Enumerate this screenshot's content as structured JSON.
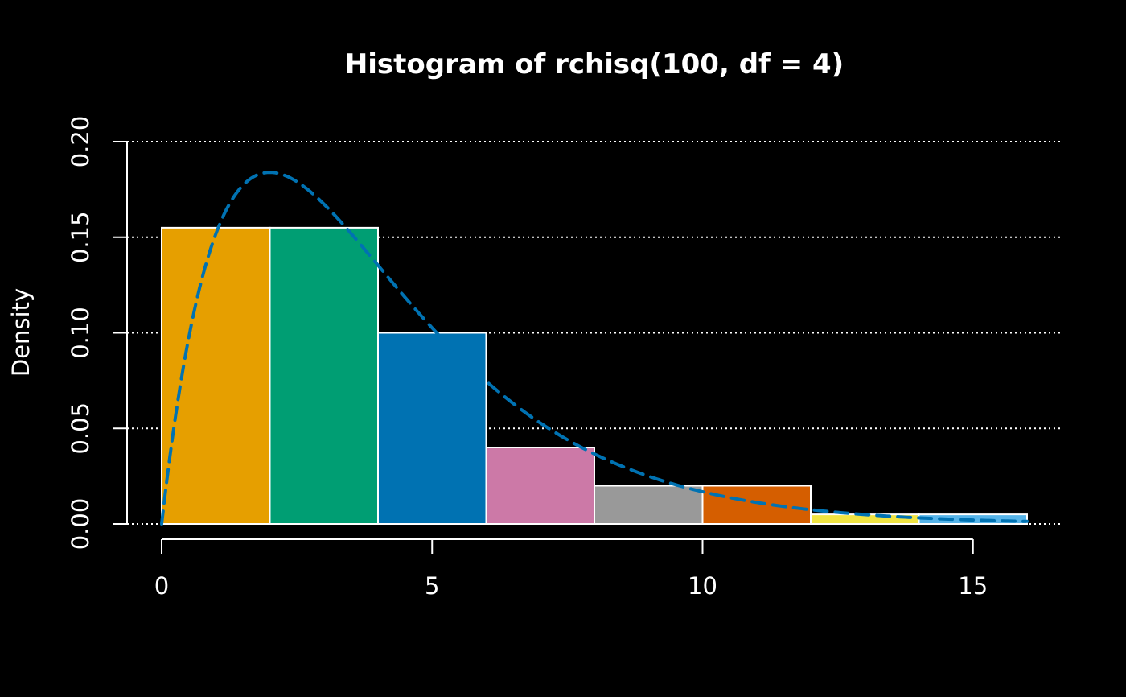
{
  "chart_data": {
    "type": "bar",
    "title": "Histogram of rchisq(100, df = 4)",
    "xlabel": "",
    "ylabel": "Density",
    "xlim": [
      0,
      16
    ],
    "ylim": [
      0,
      0.2
    ],
    "x_ticks": [
      {
        "value": 0,
        "label": "0"
      },
      {
        "value": 5,
        "label": "5"
      },
      {
        "value": 10,
        "label": "10"
      },
      {
        "value": 15,
        "label": "15"
      }
    ],
    "y_ticks": [
      {
        "value": 0,
        "label": "0.00"
      },
      {
        "value": 0.05,
        "label": "0.05"
      },
      {
        "value": 0.1,
        "label": "0.10"
      },
      {
        "value": 0.15,
        "label": "0.15"
      },
      {
        "value": 0.2,
        "label": "0.20"
      }
    ],
    "grid": "horizontal, dotted",
    "bins": [
      {
        "x0": 0,
        "x1": 2,
        "density": 0.155,
        "color": "#E69F00"
      },
      {
        "x0": 2,
        "x1": 4,
        "density": 0.155,
        "color": "#009E73"
      },
      {
        "x0": 4,
        "x1": 6,
        "density": 0.1,
        "color": "#0072B2"
      },
      {
        "x0": 6,
        "x1": 8,
        "density": 0.04,
        "color": "#CC79A7"
      },
      {
        "x0": 8,
        "x1": 10,
        "density": 0.02,
        "color": "#999999"
      },
      {
        "x0": 10,
        "x1": 12,
        "density": 0.02,
        "color": "#D55E00"
      },
      {
        "x0": 12,
        "x1": 14,
        "density": 0.005,
        "color": "#F0E442"
      },
      {
        "x0": 14,
        "x1": 16,
        "density": 0.005,
        "color": "#56B4E9"
      }
    ],
    "density_curve": {
      "distribution": "chi-squared",
      "df": 4,
      "color": "#0072B2",
      "line_style": "dashed"
    },
    "colors": {
      "background": "#000000",
      "foreground": "#ffffff",
      "grid": "#ffffff"
    }
  }
}
